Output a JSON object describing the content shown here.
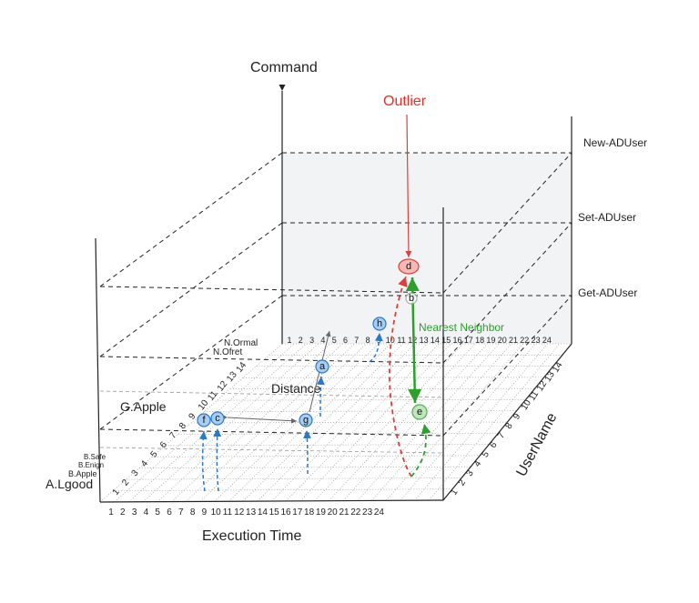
{
  "axes": {
    "z_title": "Command",
    "x_title": "Execution Time",
    "y_title": "UserName"
  },
  "commands": [
    "New-ADUser",
    "Set-ADUser",
    "Get-ADUser"
  ],
  "x_ticks": [
    "1",
    "2",
    "3",
    "4",
    "5",
    "6",
    "7",
    "8",
    "9",
    "10",
    "11",
    "12",
    "13",
    "14",
    "15",
    "16",
    "17",
    "18",
    "19",
    "20",
    "21",
    "22",
    "23",
    "24"
  ],
  "y_ticks": [
    "1",
    "2",
    "3",
    "4",
    "5",
    "6",
    "7",
    "8",
    "9",
    "10",
    "11",
    "12",
    "13",
    "14"
  ],
  "back_x_ticks": [
    "1",
    "2",
    "3",
    "4",
    "5",
    "6",
    "7",
    "8",
    "9",
    "10",
    "11",
    "12",
    "13",
    "14",
    "15",
    "16",
    "17",
    "18",
    "19",
    "20",
    "21",
    "22",
    "23",
    "24"
  ],
  "left_ticks": [
    "1",
    "2",
    "3",
    "4",
    "5",
    "6",
    "7",
    "8",
    "9",
    "10",
    "11",
    "12",
    "13",
    "14"
  ],
  "side_labels": {
    "a_lgood": "A.Lgood",
    "b_apple": "B.Apple",
    "b_enign": "B.Enign",
    "b_safe": "B.Safe",
    "g_apple": "G.Apple",
    "n_ofret": "N.Ofret",
    "n_ormal": "N.Ormal"
  },
  "annotations": {
    "outlier": "Outlier",
    "nearest_neighbor": "Nearest Neighbor",
    "distance": "Distance"
  },
  "nodes": [
    {
      "id": "a",
      "type": "normal"
    },
    {
      "id": "b",
      "type": "normal"
    },
    {
      "id": "c",
      "type": "normal"
    },
    {
      "id": "d",
      "type": "outlier"
    },
    {
      "id": "e",
      "type": "neighbor"
    },
    {
      "id": "f",
      "type": "normal"
    },
    {
      "id": "g",
      "type": "normal"
    },
    {
      "id": "h",
      "type": "normal"
    }
  ],
  "colors": {
    "normal_fill": "#a9cdf0",
    "normal_stroke": "#2a78c8",
    "outlier_fill": "#f6b9b6",
    "outlier_stroke": "#d9423c",
    "neighbor_fill": "#b6e3b0",
    "neighbor_stroke": "#3a9e3a",
    "outlier_text": "#e0302a",
    "neighbor_text": "#2e9e2e",
    "back_panel": "#f2f3f5"
  }
}
